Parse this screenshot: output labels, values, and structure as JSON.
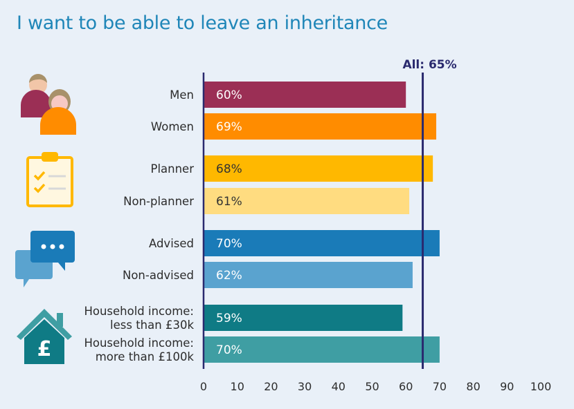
{
  "title": "I want to be able to leave an inheritance",
  "chart_data": {
    "type": "bar",
    "orientation": "horizontal",
    "title": "I want to be able to leave an inheritance",
    "categories": [
      [
        "Men"
      ],
      [
        "Women"
      ],
      [
        "Planner"
      ],
      [
        "Non-planner"
      ],
      [
        "Advised"
      ],
      [
        "Non-advised"
      ],
      [
        "Household income:",
        "less than £30k"
      ],
      [
        "Household income:",
        "more than £100k"
      ]
    ],
    "values": [
      60,
      69,
      68,
      61,
      70,
      62,
      59,
      70
    ],
    "value_labels": [
      "60%",
      "69%",
      "68%",
      "61%",
      "70%",
      "62%",
      "59%",
      "70%"
    ],
    "colors": [
      "#9b2f55",
      "#ff8c00",
      "#ffb800",
      "#ffdc80",
      "#1a7bb8",
      "#5aa3cf",
      "#0f7b85",
      "#3f9ea3"
    ],
    "dark_label": [
      false,
      false,
      true,
      true,
      false,
      false,
      false,
      false
    ],
    "groups": [
      {
        "icon": "people-icon",
        "categories": [
          0,
          1
        ]
      },
      {
        "icon": "clipboard-checklist-icon",
        "categories": [
          2,
          3
        ]
      },
      {
        "icon": "speech-bubbles-icon",
        "categories": [
          4,
          5
        ]
      },
      {
        "icon": "house-pound-icon",
        "categories": [
          6,
          7
        ]
      }
    ],
    "reference_line": {
      "value": 65,
      "label": "All: 65%",
      "color": "#2a2a6e"
    },
    "xlim": [
      0,
      100
    ],
    "xticks": [
      0,
      10,
      20,
      30,
      40,
      50,
      60,
      70,
      80,
      90,
      100
    ],
    "grid": false,
    "legend": "none",
    "xlabel": "",
    "ylabel": ""
  }
}
